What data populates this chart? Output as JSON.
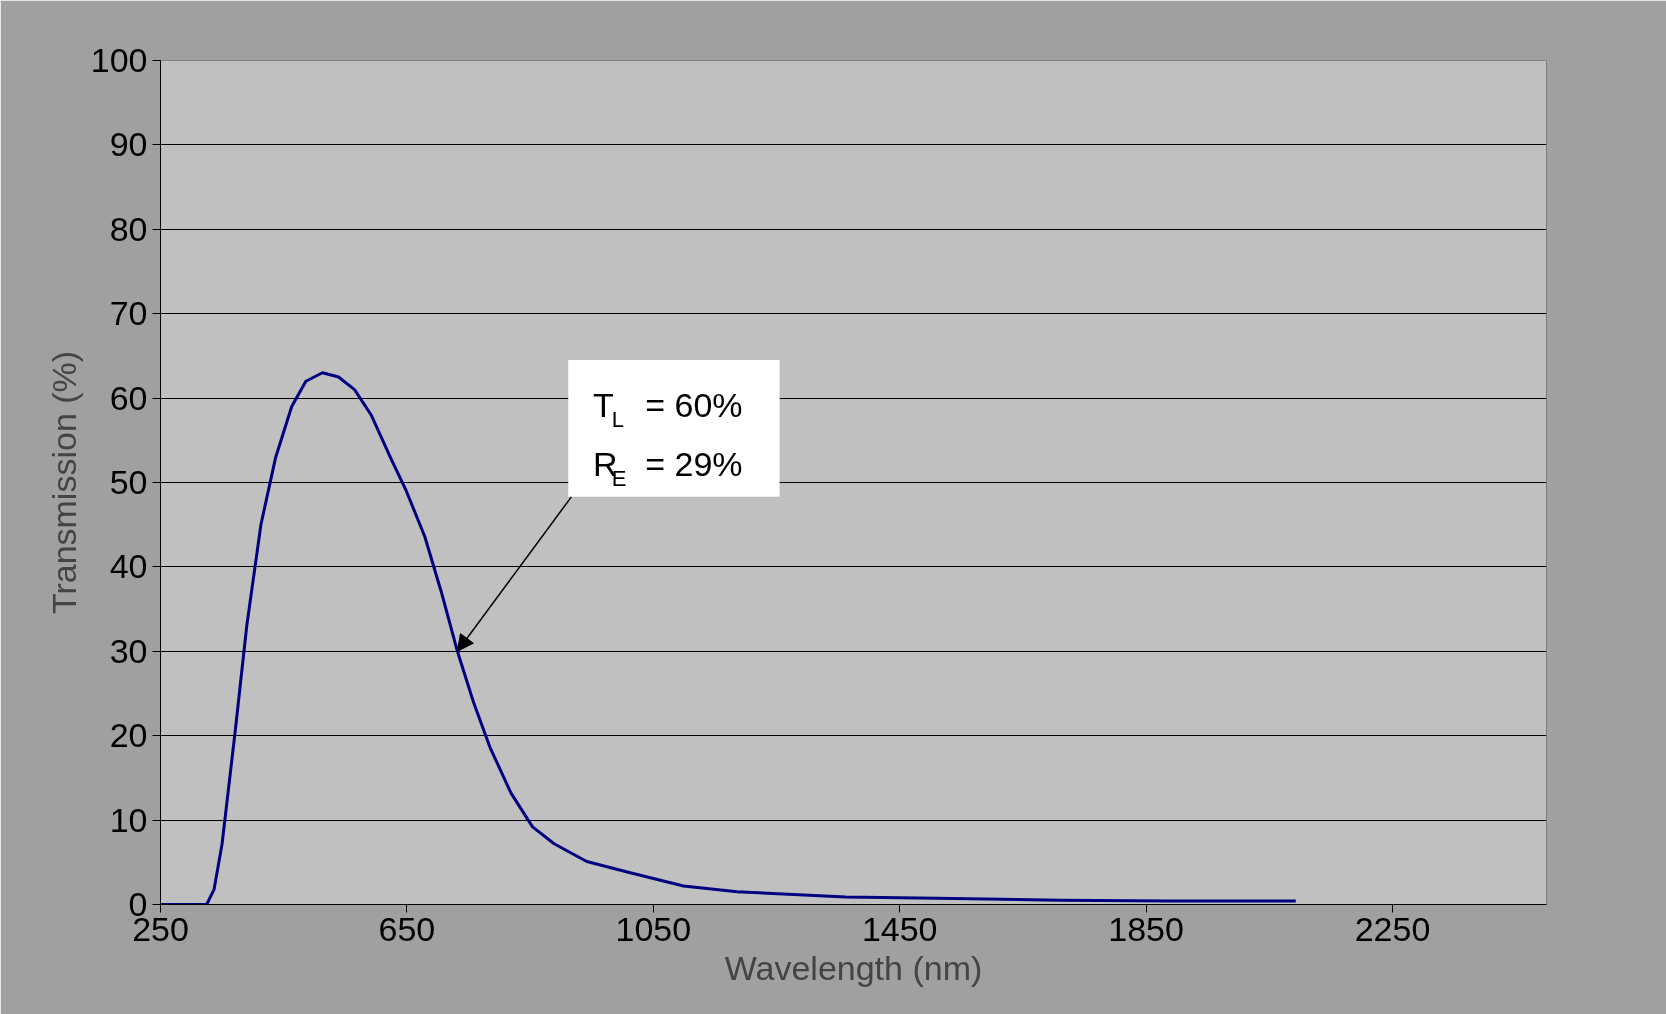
{
  "chart_data": {
    "type": "line",
    "xlabel": "Wavelength (nm)",
    "ylabel": "Transmission (%)",
    "x": [
      250,
      325,
      337,
      350,
      372,
      390,
      413,
      437,
      463,
      486,
      513,
      539,
      565,
      592,
      623,
      649,
      679,
      706,
      732,
      758,
      785,
      819,
      854,
      889,
      942,
      1011,
      1099,
      1186,
      1362,
      1537,
      1712,
      1887,
      2093
    ],
    "series": [
      {
        "color": "#000080",
        "values": [
          0,
          0,
          1.8,
          7.2,
          21,
          33,
          45,
          53,
          59,
          62,
          63,
          62.5,
          61,
          58,
          53,
          49,
          43.6,
          37,
          30,
          24,
          18.6,
          13.2,
          9.2,
          7.2,
          5.1,
          3.8,
          2.2,
          1.5,
          0.9,
          0.7,
          0.5,
          0.4,
          0.4
        ]
      }
    ],
    "xlim": [
      250,
      2500
    ],
    "xticks": [
      250,
      650,
      1050,
      1450,
      1850,
      2250
    ],
    "ylim": [
      0,
      100
    ],
    "yticks": [
      0,
      10,
      20,
      30,
      40,
      50,
      60,
      70,
      80,
      90,
      100
    ],
    "grid": "y",
    "marker": "none",
    "line_style": "solid",
    "annotations": [
      {
        "text": "T$_{L}$  = 60%\nR$_{E}$  = 29%",
        "x": 732,
        "y": 30
      }
    ]
  }
}
